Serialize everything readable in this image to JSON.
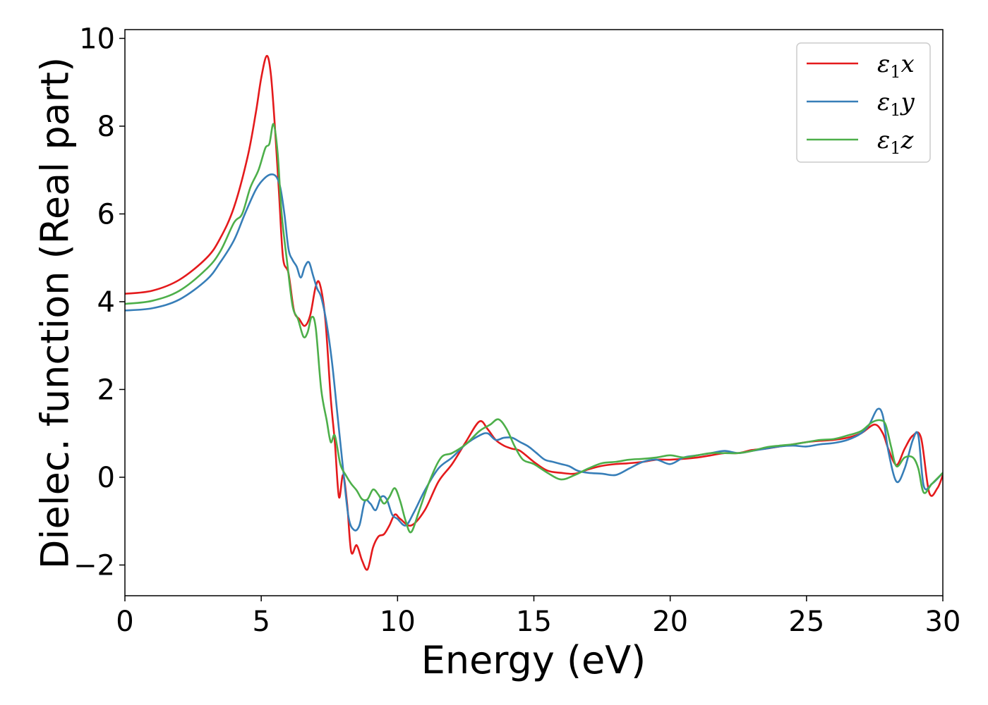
{
  "chart_data": {
    "type": "line",
    "title": "",
    "xlabel": "Energy (eV)",
    "ylabel": "Dielec. function (Real part)",
    "xlim": [
      0,
      30
    ],
    "ylim": [
      -2.7,
      10.2
    ],
    "xticks": [
      0,
      5,
      10,
      15,
      20,
      25,
      30
    ],
    "yticks": [
      -2,
      0,
      2,
      4,
      6,
      8,
      10
    ],
    "xtick_labels": [
      "0",
      "5",
      "10",
      "15",
      "20",
      "25",
      "30"
    ],
    "ytick_labels": [
      "−2",
      "0",
      "2",
      "4",
      "6",
      "8",
      "10"
    ],
    "grid": false,
    "legend_position": "top-right",
    "series": [
      {
        "name": "ε1x",
        "legend_base": "ε",
        "legend_sub": "1",
        "legend_var": "x",
        "color": "#e41a1c",
        "x": [
          0,
          1,
          2,
          3,
          3.5,
          4,
          4.5,
          4.8,
          5.0,
          5.2,
          5.35,
          5.5,
          5.65,
          5.8,
          6.0,
          6.2,
          6.4,
          6.6,
          6.8,
          7.0,
          7.15,
          7.35,
          7.55,
          7.7,
          7.85,
          8.0,
          8.15,
          8.3,
          8.5,
          8.7,
          8.9,
          9.1,
          9.3,
          9.5,
          9.7,
          9.9,
          10.1,
          10.5,
          11.0,
          11.5,
          12.0,
          12.5,
          13.0,
          13.3,
          13.6,
          13.9,
          14.2,
          14.5,
          15.0,
          15.5,
          16.0,
          16.5,
          17.0,
          17.5,
          18.0,
          18.5,
          19.0,
          19.5,
          20.0,
          20.5,
          21.0,
          21.5,
          22.0,
          22.5,
          23.0,
          23.5,
          24.0,
          24.5,
          25.0,
          25.5,
          26.0,
          26.5,
          27.0,
          27.5,
          27.8,
          28.0,
          28.3,
          28.6,
          28.9,
          29.2,
          29.5,
          29.8,
          30.0
        ],
        "y": [
          4.18,
          4.25,
          4.5,
          5.0,
          5.45,
          6.15,
          7.3,
          8.3,
          9.1,
          9.6,
          9.2,
          8.0,
          6.5,
          5.0,
          4.65,
          3.8,
          3.6,
          3.45,
          3.7,
          4.35,
          4.4,
          3.6,
          1.8,
          0.8,
          -0.45,
          0.05,
          -0.6,
          -1.7,
          -1.55,
          -1.9,
          -2.1,
          -1.6,
          -1.35,
          -1.3,
          -1.1,
          -0.85,
          -0.95,
          -1.1,
          -0.75,
          -0.1,
          0.3,
          0.8,
          1.27,
          1.1,
          0.85,
          0.72,
          0.65,
          0.6,
          0.35,
          0.15,
          0.1,
          0.08,
          0.18,
          0.26,
          0.3,
          0.32,
          0.35,
          0.4,
          0.4,
          0.42,
          0.45,
          0.5,
          0.55,
          0.55,
          0.62,
          0.65,
          0.7,
          0.75,
          0.8,
          0.83,
          0.85,
          0.9,
          1.0,
          1.2,
          1.0,
          0.65,
          0.28,
          0.65,
          0.95,
          0.9,
          -0.35,
          -0.25,
          0.05
        ]
      },
      {
        "name": "ε1y",
        "legend_base": "ε",
        "legend_sub": "1",
        "legend_var": "y",
        "color": "#377eb8",
        "x": [
          0,
          1,
          2,
          3,
          3.5,
          4,
          4.4,
          4.8,
          5.1,
          5.35,
          5.55,
          5.7,
          5.85,
          6.0,
          6.15,
          6.3,
          6.45,
          6.6,
          6.75,
          6.9,
          7.05,
          7.2,
          7.4,
          7.6,
          7.8,
          8.0,
          8.2,
          8.4,
          8.6,
          8.8,
          9.0,
          9.2,
          9.4,
          9.6,
          9.8,
          10.0,
          10.3,
          10.6,
          11.0,
          11.5,
          12.0,
          12.5,
          13.0,
          13.3,
          13.6,
          13.9,
          14.2,
          14.5,
          14.8,
          15.1,
          15.4,
          15.7,
          16.0,
          16.3,
          16.6,
          17.0,
          17.5,
          18.0,
          18.5,
          19.0,
          19.5,
          20.0,
          20.5,
          21.0,
          21.5,
          22.0,
          22.5,
          23.0,
          23.5,
          24.0,
          24.5,
          25.0,
          25.5,
          26.0,
          26.5,
          27.0,
          27.3,
          27.6,
          27.8,
          28.0,
          28.3,
          28.6,
          28.9,
          29.1,
          29.3,
          29.6,
          30.0
        ],
        "y": [
          3.8,
          3.85,
          4.05,
          4.5,
          4.9,
          5.4,
          6.0,
          6.55,
          6.8,
          6.9,
          6.85,
          6.6,
          6.0,
          5.2,
          4.95,
          4.8,
          4.55,
          4.8,
          4.9,
          4.6,
          4.3,
          4.1,
          3.5,
          2.6,
          1.4,
          0.2,
          -0.9,
          -1.2,
          -1.1,
          -0.55,
          -0.6,
          -0.75,
          -0.45,
          -0.5,
          -0.85,
          -0.95,
          -1.1,
          -0.8,
          -0.3,
          0.2,
          0.45,
          0.75,
          0.95,
          1.0,
          0.85,
          0.9,
          0.9,
          0.8,
          0.7,
          0.55,
          0.4,
          0.35,
          0.3,
          0.25,
          0.15,
          0.1,
          0.08,
          0.05,
          0.2,
          0.35,
          0.4,
          0.3,
          0.45,
          0.5,
          0.55,
          0.6,
          0.55,
          0.6,
          0.65,
          0.7,
          0.72,
          0.7,
          0.75,
          0.78,
          0.85,
          1.0,
          1.2,
          1.55,
          1.4,
          0.6,
          -0.1,
          0.2,
          0.85,
          0.95,
          -0.2,
          -0.15,
          0.1
        ]
      },
      {
        "name": "ε1z",
        "legend_base": "ε",
        "legend_sub": "1",
        "legend_var": "z",
        "color": "#4daf4a",
        "x": [
          0,
          1,
          2,
          3,
          3.5,
          4,
          4.3,
          4.6,
          4.9,
          5.15,
          5.3,
          5.45,
          5.6,
          5.75,
          5.95,
          6.15,
          6.35,
          6.55,
          6.7,
          6.85,
          7.0,
          7.2,
          7.4,
          7.55,
          7.7,
          7.9,
          8.1,
          8.3,
          8.5,
          8.7,
          8.9,
          9.1,
          9.3,
          9.5,
          9.7,
          9.9,
          10.1,
          10.3,
          10.5,
          10.8,
          11.2,
          11.6,
          12.0,
          12.5,
          13.0,
          13.4,
          13.7,
          14.0,
          14.3,
          14.6,
          15.0,
          15.5,
          16.0,
          16.5,
          17.0,
          17.5,
          18.0,
          18.5,
          19.0,
          19.5,
          20.0,
          20.5,
          21.0,
          21.5,
          22.0,
          22.5,
          23.0,
          23.5,
          24.0,
          24.5,
          25.0,
          25.5,
          26.0,
          26.5,
          27.0,
          27.4,
          27.7,
          27.9,
          28.1,
          28.3,
          28.6,
          28.9,
          29.1,
          29.3,
          29.6,
          30.0
        ],
        "y": [
          3.95,
          4.02,
          4.25,
          4.75,
          5.15,
          5.8,
          6.0,
          6.6,
          7.0,
          7.5,
          7.6,
          8.05,
          7.4,
          6.0,
          4.9,
          3.9,
          3.6,
          3.2,
          3.3,
          3.65,
          3.4,
          2.0,
          1.3,
          0.8,
          0.95,
          0.3,
          0.05,
          -0.15,
          -0.3,
          -0.5,
          -0.5,
          -0.28,
          -0.4,
          -0.6,
          -0.45,
          -0.25,
          -0.55,
          -1.0,
          -1.25,
          -0.75,
          -0.05,
          0.45,
          0.55,
          0.75,
          1.05,
          1.2,
          1.32,
          1.1,
          0.7,
          0.4,
          0.3,
          0.1,
          -0.05,
          0.05,
          0.2,
          0.32,
          0.35,
          0.4,
          0.42,
          0.45,
          0.5,
          0.45,
          0.5,
          0.55,
          0.55,
          0.55,
          0.6,
          0.68,
          0.72,
          0.75,
          0.8,
          0.85,
          0.87,
          0.95,
          1.05,
          1.25,
          1.3,
          1.2,
          0.7,
          0.25,
          0.45,
          0.45,
          0.2,
          -0.35,
          -0.15,
          0.1
        ]
      }
    ]
  }
}
